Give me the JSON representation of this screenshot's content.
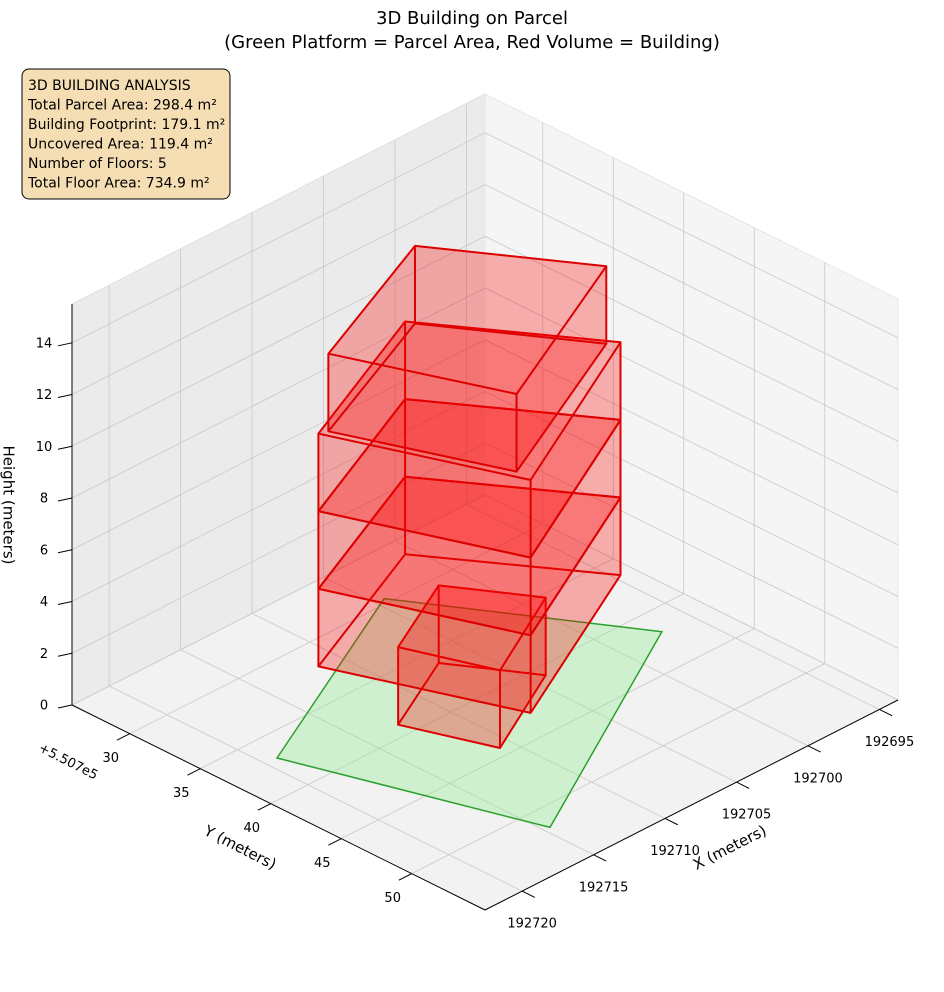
{
  "chart_data": {
    "type": "3d",
    "title": "3D Building on Parcel",
    "subtitle": "(Green Platform = Parcel Area, Red Volume = Building)",
    "info_box": [
      "3D BUILDING ANALYSIS",
      "Total Parcel Area: 298.4 m²",
      "Building Footprint: 179.1 m²",
      "Uncovered Area: 119.4 m²",
      "Number of Floors: 5",
      "Total Floor Area: 734.9 m²"
    ],
    "xlabel": "X (meters)",
    "ylabel": "Y (meters)",
    "zlabel": "Height (meters)",
    "y_offset_label": "+5.507e5",
    "xlim": [
      192693.7,
      192722.6
    ],
    "ylim": [
      25.9,
      55.2
    ],
    "zlim": [
      0,
      15.5
    ],
    "xticks": [
      192695,
      192700,
      192705,
      192710,
      192715,
      192720
    ],
    "yticks": [
      30,
      35,
      40,
      45,
      50
    ],
    "zticks": [
      0,
      2,
      4,
      6,
      8,
      10,
      12,
      14
    ],
    "grid": true,
    "parcel": {
      "x": [
        192704.4,
        192697.1,
        192714.6,
        192719.2
      ],
      "y": [
        29.6,
        41.9,
        51.7,
        37.0
      ],
      "color": "#90ee90",
      "edge_color": "#2ca02c"
    },
    "floors": [
      {
        "x": [
          192707.0,
          192704.15,
          192710.8,
          192712.7
        ],
        "y": [
          36.1,
          40.8,
          44.3,
          39.0
        ],
        "z": [
          0,
          3
        ]
      },
      {
        "x": [
          192716.8,
          192706.0,
          192700.0,
          192712.7
        ],
        "y": [
          37.5,
          32.7,
          41.9,
          48.4
        ],
        "z": [
          3,
          6
        ]
      },
      {
        "x": [
          192716.8,
          192706.0,
          192700.0,
          192712.7
        ],
        "y": [
          37.5,
          32.7,
          41.9,
          48.4
        ],
        "z": [
          6,
          9
        ]
      },
      {
        "x": [
          192716.8,
          192706.0,
          192700.0,
          192712.7
        ],
        "y": [
          37.5,
          32.7,
          41.9,
          48.4
        ],
        "z": [
          9,
          12
        ]
      },
      {
        "x": [
          192716.3,
          192705.8,
          192700.6,
          192712.6
        ],
        "y": [
          37.7,
          33.2,
          41.5,
          47.3
        ],
        "z": [
          12,
          15
        ]
      }
    ],
    "building_color": "#ff0000",
    "building_edge_color": "#dd0000"
  }
}
